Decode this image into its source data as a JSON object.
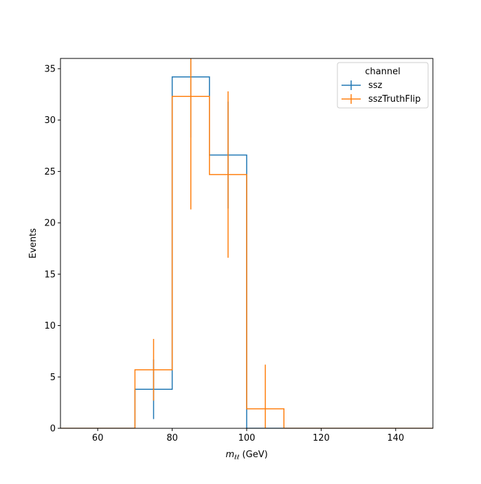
{
  "chart_data": {
    "type": "histogram",
    "xlabel_main": "m",
    "xlabel_sub": "ℓℓ",
    "xlabel_unit": " (GeV)",
    "ylabel": "Events",
    "xlim": [
      50,
      150
    ],
    "ylim": [
      0,
      36
    ],
    "xticks": [
      60,
      80,
      100,
      120,
      140
    ],
    "yticks": [
      0,
      5,
      10,
      15,
      20,
      25,
      30,
      35
    ],
    "bin_edges": [
      50,
      60,
      70,
      80,
      90,
      100,
      110,
      120,
      130,
      140,
      150
    ],
    "legend": {
      "title": "channel",
      "placement": "top-right"
    },
    "series": [
      {
        "name": "ssz",
        "color": "#1f77b4",
        "values": [
          0,
          0,
          3.8,
          34.2,
          26.6,
          0,
          0,
          0,
          0,
          0
        ],
        "errors": [
          0,
          0,
          2.9,
          5.9,
          5.2,
          0,
          0,
          0,
          0,
          0
        ]
      },
      {
        "name": "sszTruthFlip",
        "color": "#ff7f0e",
        "values": [
          0,
          0,
          5.7,
          32.3,
          24.7,
          1.9,
          0,
          0,
          0,
          0
        ],
        "errors": [
          0,
          0,
          3.0,
          11.0,
          8.1,
          4.3,
          0,
          0,
          0,
          0
        ]
      }
    ]
  }
}
